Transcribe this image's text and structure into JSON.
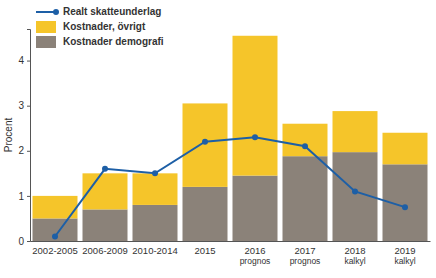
{
  "chart_data": {
    "type": "bar",
    "stacked": true,
    "ylabel": "Procent",
    "categories": [
      "2002-2005",
      "2006-2009",
      "2010-2014",
      "2015",
      "2016 prognos",
      "2017 prognos",
      "2018 kalkyl",
      "2019 kalkyl"
    ],
    "series": [
      {
        "name": "Realt skatteunderlag",
        "type": "line",
        "color": "#1d5fa6",
        "marker": "circle",
        "values": [
          0.1,
          1.6,
          1.5,
          2.2,
          2.3,
          2.1,
          1.1,
          0.75
        ]
      },
      {
        "name": "Kostnader, övrigt",
        "type": "bar",
        "color": "#f5c52a",
        "values": [
          0.5,
          0.8,
          0.7,
          1.85,
          3.1,
          0.72,
          0.91,
          0.7
        ]
      },
      {
        "name": "Kostnader demografi",
        "type": "bar",
        "color": "#8b8279",
        "values": [
          0.5,
          0.7,
          0.8,
          1.2,
          1.45,
          1.88,
          1.97,
          1.7
        ]
      }
    ],
    "ylim": [
      0,
      4.7
    ],
    "yticks": [
      0,
      1,
      2,
      3,
      4
    ],
    "legend": "upper left",
    "grid": false
  }
}
